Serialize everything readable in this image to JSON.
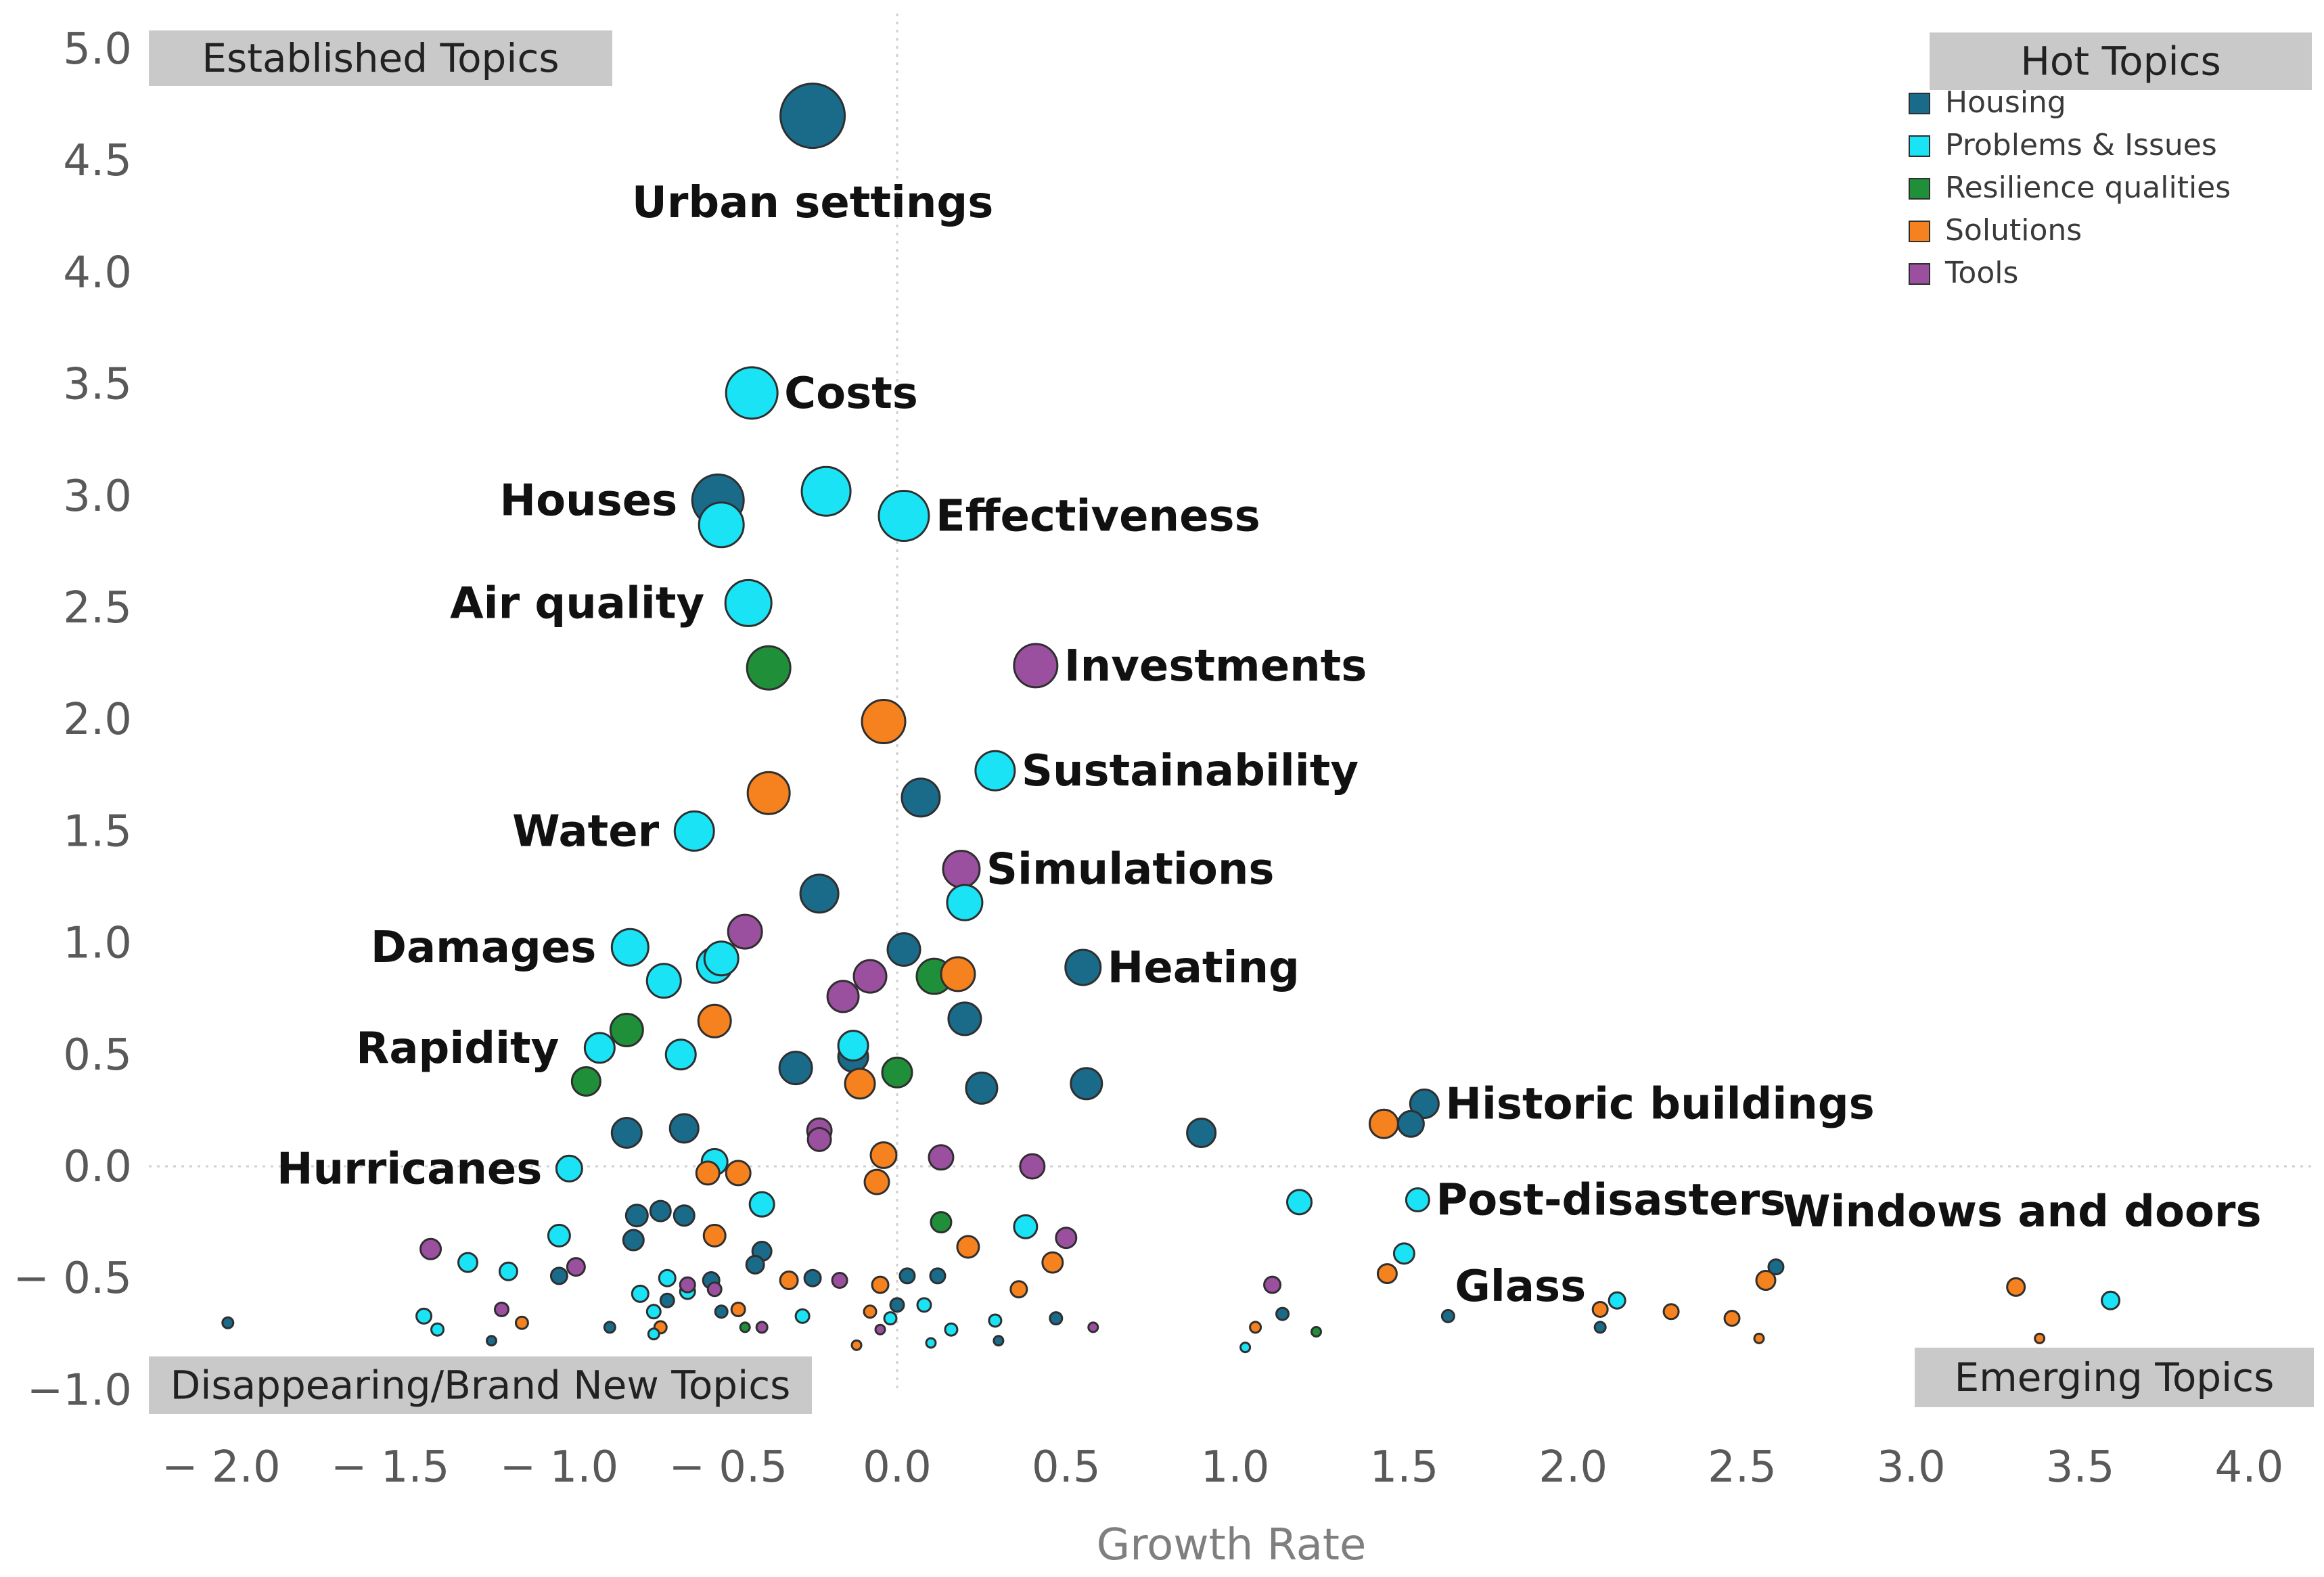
{
  "chart_data": {
    "type": "scatter",
    "xlabel": "Growth Rate",
    "ylabel": "",
    "xlim": [
      -2.2,
      4.2
    ],
    "ylim": [
      -1.1,
      5.15
    ],
    "x_ticks": [
      -2.0,
      -1.5,
      -1.0,
      -0.5,
      0.0,
      0.5,
      1.0,
      1.5,
      2.0,
      2.5,
      3.0,
      3.5,
      4.0
    ],
    "x_tick_labels": [
      "− 2.0",
      "− 1.5",
      "− 1.0",
      "− 0.5",
      "0.0",
      "0.5",
      "1.0",
      "1.5",
      "2.0",
      "2.5",
      "3.0",
      "3.5",
      "4.0"
    ],
    "y_ticks": [
      5.0,
      4.5,
      4.0,
      3.5,
      3.0,
      2.5,
      2.0,
      1.5,
      1.0,
      0.5,
      0.0,
      -0.5,
      -1.0
    ],
    "y_tick_labels": [
      "5.0",
      "4.5",
      "4.0",
      "3.5",
      "3.0",
      "2.5",
      "2.0",
      "1.5",
      "1.0",
      "0.5",
      "0.0",
      "− 0.5",
      "−1.0"
    ],
    "reference_lines": {
      "x": 0,
      "y": 0
    },
    "grid": false,
    "legend_position": "top-right",
    "quadrants": {
      "top_left": "Established Topics",
      "top_right": "Hot Topics",
      "bottom_left": "Disappearing/Brand New Topics",
      "bottom_right": "Emerging Topics"
    },
    "colors": {
      "Housing": "#1a6b8a",
      "Problems & Issues": "#19e3f5",
      "Resilience qualities": "#1f8f3a",
      "Solutions": "#f5821f",
      "Tools": "#9b4f9f"
    },
    "series": [
      {
        "name": "Housing",
        "points": [
          {
            "x": -0.25,
            "y": 4.7,
            "size": 95,
            "label": "Urban settings"
          },
          {
            "x": -0.53,
            "y": 2.98,
            "size": 76,
            "label": "Houses"
          },
          {
            "x": 0.07,
            "y": 1.65,
            "size": 56
          },
          {
            "x": -0.23,
            "y": 1.22,
            "size": 56
          },
          {
            "x": 0.02,
            "y": 0.97,
            "size": 48
          },
          {
            "x": 0.55,
            "y": 0.89,
            "size": 52,
            "label": "Heating"
          },
          {
            "x": 0.2,
            "y": 0.66,
            "size": 48
          },
          {
            "x": -0.3,
            "y": 0.44,
            "size": 48
          },
          {
            "x": -0.13,
            "y": 0.49,
            "size": 44
          },
          {
            "x": 0.25,
            "y": 0.35,
            "size": 46
          },
          {
            "x": 0.56,
            "y": 0.37,
            "size": 46
          },
          {
            "x": -0.63,
            "y": 0.17,
            "size": 42
          },
          {
            "x": -0.8,
            "y": 0.15,
            "size": 44
          },
          {
            "x": 0.9,
            "y": 0.15,
            "size": 42
          },
          {
            "x": 1.56,
            "y": 0.28,
            "size": 42,
            "label": "Historic buildings"
          },
          {
            "x": 1.52,
            "y": 0.19,
            "size": 38
          },
          {
            "x": -0.77,
            "y": -0.22,
            "size": 32
          },
          {
            "x": -0.7,
            "y": -0.2,
            "size": 30
          },
          {
            "x": -0.63,
            "y": -0.22,
            "size": 30
          },
          {
            "x": -0.78,
            "y": -0.33,
            "size": 30
          },
          {
            "x": -0.4,
            "y": -0.38,
            "size": 28
          },
          {
            "x": -0.42,
            "y": -0.44,
            "size": 26
          },
          {
            "x": -1.0,
            "y": -0.49,
            "size": 24
          },
          {
            "x": -0.55,
            "y": -0.51,
            "size": 24
          },
          {
            "x": -0.25,
            "y": -0.5,
            "size": 24
          },
          {
            "x": 0.03,
            "y": -0.49,
            "size": 22
          },
          {
            "x": 0.12,
            "y": -0.49,
            "size": 22
          },
          {
            "x": -0.68,
            "y": -0.6,
            "size": 20
          },
          {
            "x": 0.47,
            "y": -0.68,
            "size": 18
          },
          {
            "x": -1.98,
            "y": -0.7,
            "size": 16
          },
          {
            "x": 1.63,
            "y": -0.67,
            "size": 18
          },
          {
            "x": 2.6,
            "y": -0.45,
            "size": 22,
            "label": "Windows and doors"
          },
          {
            "x": 2.08,
            "y": -0.72,
            "size": 16
          },
          {
            "x": 1.14,
            "y": -0.66,
            "size": 18
          },
          {
            "x": -0.85,
            "y": -0.72,
            "size": 16
          },
          {
            "x": -0.52,
            "y": -0.65,
            "size": 18
          },
          {
            "x": 0.0,
            "y": -0.62,
            "size": 20
          },
          {
            "x": -1.2,
            "y": -0.78,
            "size": 14
          },
          {
            "x": 0.3,
            "y": -0.78,
            "size": 14
          }
        ]
      },
      {
        "name": "Problems & Issues",
        "points": [
          {
            "x": -0.43,
            "y": 3.46,
            "size": 76,
            "label": "Costs"
          },
          {
            "x": -0.21,
            "y": 3.02,
            "size": 72
          },
          {
            "x": 0.02,
            "y": 2.91,
            "size": 74,
            "label": "Effectiveness"
          },
          {
            "x": -0.52,
            "y": 2.87,
            "size": 66
          },
          {
            "x": -0.44,
            "y": 2.52,
            "size": 68,
            "label": "Air quality"
          },
          {
            "x": 0.29,
            "y": 1.77,
            "size": 58,
            "label": "Sustainability"
          },
          {
            "x": -0.6,
            "y": 1.5,
            "size": 58,
            "label": "Water"
          },
          {
            "x": 0.2,
            "y": 1.18,
            "size": 52
          },
          {
            "x": -0.79,
            "y": 0.98,
            "size": 54,
            "label": "Damages"
          },
          {
            "x": -0.54,
            "y": 0.9,
            "size": 52
          },
          {
            "x": -0.52,
            "y": 0.93,
            "size": 50
          },
          {
            "x": -0.69,
            "y": 0.83,
            "size": 50
          },
          {
            "x": -0.13,
            "y": 0.54,
            "size": 44
          },
          {
            "x": -0.64,
            "y": 0.5,
            "size": 44
          },
          {
            "x": -0.88,
            "y": 0.53,
            "size": 44,
            "label": "Rapidity"
          },
          {
            "x": -0.97,
            "y": -0.01,
            "size": 38,
            "label": "Hurricanes"
          },
          {
            "x": -0.54,
            "y": 0.02,
            "size": 38
          },
          {
            "x": -0.4,
            "y": -0.17,
            "size": 36
          },
          {
            "x": 1.19,
            "y": -0.16,
            "size": 36
          },
          {
            "x": 1.54,
            "y": -0.15,
            "size": 34,
            "label": "Post-disasters"
          },
          {
            "x": 1.5,
            "y": -0.39,
            "size": 30,
            "label": "Glass"
          },
          {
            "x": -1.0,
            "y": -0.31,
            "size": 32
          },
          {
            "x": 0.38,
            "y": -0.27,
            "size": 34
          },
          {
            "x": -1.27,
            "y": -0.43,
            "size": 28
          },
          {
            "x": -1.15,
            "y": -0.47,
            "size": 26
          },
          {
            "x": -0.76,
            "y": -0.57,
            "size": 24
          },
          {
            "x": -0.68,
            "y": -0.5,
            "size": 24
          },
          {
            "x": -0.62,
            "y": -0.56,
            "size": 22
          },
          {
            "x": -1.4,
            "y": -0.67,
            "size": 22
          },
          {
            "x": -1.36,
            "y": -0.73,
            "size": 18
          },
          {
            "x": -0.72,
            "y": -0.65,
            "size": 20
          },
          {
            "x": -0.28,
            "y": -0.67,
            "size": 20
          },
          {
            "x": -0.02,
            "y": -0.68,
            "size": 18
          },
          {
            "x": 0.08,
            "y": -0.62,
            "size": 20
          },
          {
            "x": 0.16,
            "y": -0.73,
            "size": 18
          },
          {
            "x": 0.29,
            "y": -0.69,
            "size": 18
          },
          {
            "x": 2.13,
            "y": -0.6,
            "size": 24
          },
          {
            "x": 3.59,
            "y": -0.6,
            "size": 26
          },
          {
            "x": 1.03,
            "y": -0.81,
            "size": 14
          },
          {
            "x": 0.1,
            "y": -0.79,
            "size": 14
          },
          {
            "x": -0.72,
            "y": -0.75,
            "size": 16
          }
        ]
      },
      {
        "name": "Resilience qualities",
        "points": [
          {
            "x": -0.38,
            "y": 2.23,
            "size": 64
          },
          {
            "x": 0.11,
            "y": 0.85,
            "size": 52
          },
          {
            "x": -0.8,
            "y": 0.61,
            "size": 48
          },
          {
            "x": 0.0,
            "y": 0.42,
            "size": 44
          },
          {
            "x": -0.92,
            "y": 0.38,
            "size": 42
          },
          {
            "x": 0.13,
            "y": -0.25,
            "size": 30
          },
          {
            "x": 1.24,
            "y": -0.74,
            "size": 14
          },
          {
            "x": -0.45,
            "y": -0.72,
            "size": 14
          }
        ]
      },
      {
        "name": "Solutions",
        "points": [
          {
            "x": -0.04,
            "y": 1.99,
            "size": 64
          },
          {
            "x": -0.38,
            "y": 1.67,
            "size": 62
          },
          {
            "x": 0.18,
            "y": 0.86,
            "size": 50
          },
          {
            "x": -0.54,
            "y": 0.65,
            "size": 48
          },
          {
            "x": -0.11,
            "y": 0.37,
            "size": 44
          },
          {
            "x": 1.44,
            "y": 0.19,
            "size": 42
          },
          {
            "x": -0.04,
            "y": 0.05,
            "size": 38
          },
          {
            "x": -0.47,
            "y": -0.03,
            "size": 36
          },
          {
            "x": -0.56,
            "y": -0.03,
            "size": 34
          },
          {
            "x": -0.06,
            "y": -0.07,
            "size": 36
          },
          {
            "x": -0.54,
            "y": -0.31,
            "size": 32
          },
          {
            "x": 0.21,
            "y": -0.36,
            "size": 32
          },
          {
            "x": 0.46,
            "y": -0.43,
            "size": 30
          },
          {
            "x": 1.45,
            "y": -0.48,
            "size": 28
          },
          {
            "x": 2.57,
            "y": -0.51,
            "size": 28
          },
          {
            "x": 3.31,
            "y": -0.54,
            "size": 26
          },
          {
            "x": -0.32,
            "y": -0.51,
            "size": 26
          },
          {
            "x": -0.05,
            "y": -0.53,
            "size": 24
          },
          {
            "x": 0.36,
            "y": -0.55,
            "size": 24
          },
          {
            "x": 2.08,
            "y": -0.64,
            "size": 22
          },
          {
            "x": 2.29,
            "y": -0.65,
            "size": 22
          },
          {
            "x": 2.47,
            "y": -0.68,
            "size": 22
          },
          {
            "x": -0.47,
            "y": -0.64,
            "size": 20
          },
          {
            "x": -1.11,
            "y": -0.7,
            "size": 18
          },
          {
            "x": -0.7,
            "y": -0.72,
            "size": 18
          },
          {
            "x": -0.08,
            "y": -0.65,
            "size": 18
          },
          {
            "x": 1.06,
            "y": -0.72,
            "size": 16
          },
          {
            "x": 2.55,
            "y": -0.77,
            "size": 14
          },
          {
            "x": 3.38,
            "y": -0.77,
            "size": 14
          },
          {
            "x": -0.12,
            "y": -0.8,
            "size": 14
          }
        ]
      },
      {
        "name": "Tools",
        "points": [
          {
            "x": 0.41,
            "y": 2.24,
            "size": 64,
            "label": "Investments"
          },
          {
            "x": 0.19,
            "y": 1.33,
            "size": 54,
            "label": "Simulations"
          },
          {
            "x": -0.45,
            "y": 1.05,
            "size": 50
          },
          {
            "x": -0.08,
            "y": 0.85,
            "size": 48
          },
          {
            "x": -0.16,
            "y": 0.76,
            "size": 46
          },
          {
            "x": -0.23,
            "y": 0.16,
            "size": 36
          },
          {
            "x": -0.23,
            "y": 0.12,
            "size": 34
          },
          {
            "x": 0.13,
            "y": 0.04,
            "size": 36
          },
          {
            "x": 0.4,
            "y": 0.0,
            "size": 36
          },
          {
            "x": 0.5,
            "y": -0.32,
            "size": 30
          },
          {
            "x": -1.38,
            "y": -0.37,
            "size": 30
          },
          {
            "x": -0.95,
            "y": -0.45,
            "size": 26
          },
          {
            "x": -0.62,
            "y": -0.53,
            "size": 22
          },
          {
            "x": -0.17,
            "y": -0.51,
            "size": 22
          },
          {
            "x": 1.11,
            "y": -0.53,
            "size": 24
          },
          {
            "x": -1.17,
            "y": -0.64,
            "size": 20
          },
          {
            "x": -0.54,
            "y": -0.55,
            "size": 20
          },
          {
            "x": -0.4,
            "y": -0.72,
            "size": 16
          },
          {
            "x": 0.58,
            "y": -0.72,
            "size": 14
          },
          {
            "x": -0.05,
            "y": -0.73,
            "size": 14
          }
        ]
      }
    ]
  }
}
